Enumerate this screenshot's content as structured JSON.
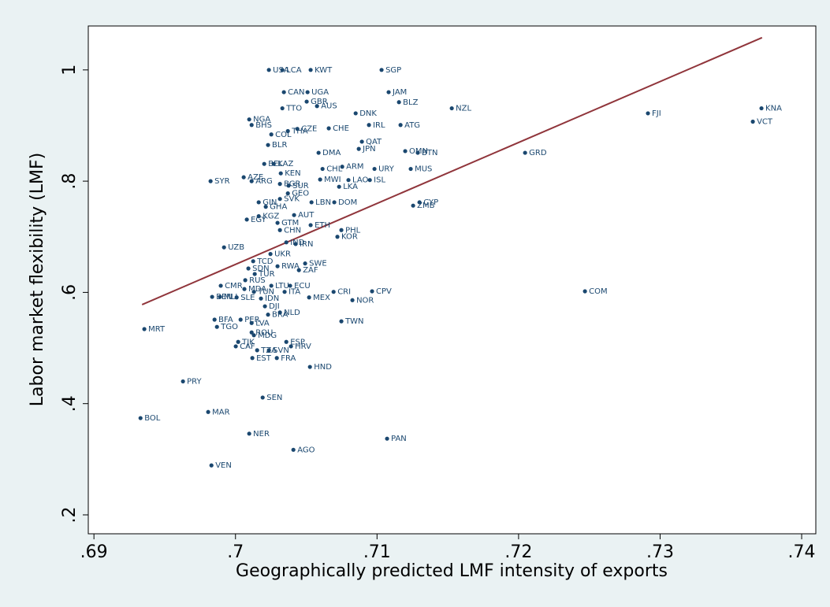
{
  "chart_data": {
    "type": "scatter",
    "xlabel": "Geographically predicted LMF intensity of exports",
    "ylabel": "Labor market flexibility (LMF)",
    "xlim": [
      0.6896,
      0.741
    ],
    "ylim": [
      0.166,
      1.079
    ],
    "xticks": [
      {
        "value": 0.69,
        "label": ".69"
      },
      {
        "value": 0.7,
        "label": ".7"
      },
      {
        "value": 0.71,
        "label": ".71"
      },
      {
        "value": 0.72,
        "label": ".72"
      },
      {
        "value": 0.73,
        "label": ".73"
      },
      {
        "value": 0.74,
        "label": ".74"
      }
    ],
    "yticks": [
      {
        "value": 0.2,
        "label": ".2"
      },
      {
        "value": 0.4,
        "label": ".4"
      },
      {
        "value": 0.6,
        "label": ".6"
      },
      {
        "value": 0.8,
        "label": ".8"
      },
      1
    ],
    "series": [
      {
        "color": "#1a476f",
        "labels": [
          "USA",
          "LCA",
          "KWT",
          "SGP",
          "CAN",
          "UGA",
          "JAM",
          "GBR",
          "BLZ",
          "AUS",
          "TTO",
          "NZL",
          "DNK",
          "FJI",
          "KNA",
          "NGA",
          "BHS",
          "THA",
          "CZE",
          "CHE",
          "IRL",
          "ATG",
          "VCT",
          "COL",
          "QAT",
          "JPN",
          "BLR",
          "DMA",
          "OMN",
          "BTN",
          "GRD",
          "BEL",
          "KAZ",
          "ARM",
          "CHL",
          "URY",
          "MUS",
          "KEN",
          "MWI",
          "LAO",
          "ISL",
          "AZE",
          "ARG",
          "SYR",
          "BGR",
          "SUR",
          "LKA",
          "GEO",
          "SVK",
          "GIN",
          "LBN",
          "DOM",
          "GHA",
          "CYP",
          "ZMB",
          "AUT",
          "KGZ",
          "EGY",
          "GTM",
          "ETH",
          "CHN",
          "PHL",
          "KOR",
          "IND",
          "IRN",
          "UZB",
          "UKR",
          "TCD",
          "SWE",
          "RWA",
          "ZAF",
          "SDN",
          "TUR",
          "RUS",
          "CMR",
          "LTU",
          "ECU",
          "MDA",
          "TUN",
          "CRI",
          "CPV",
          "COM",
          "ITA",
          "BEN",
          "MLI",
          "SLE",
          "IDN",
          "MEX",
          "NOR",
          "DJI",
          "NLD",
          "BRA",
          "BFA",
          "PER",
          "LVA",
          "TWN",
          "ROU",
          "MDG",
          "ESP",
          "TJK",
          "HRV",
          "CAF",
          "TZA",
          "SVN",
          "EST",
          "FRA",
          "HND",
          "MRT",
          "TGO",
          "PRY",
          "SEN",
          "MAR",
          "BOL",
          "NER",
          "PAN",
          "AGO",
          "VEN"
        ],
        "x": [
          0.70236,
          0.70331,
          0.70531,
          0.71032,
          0.70342,
          0.70509,
          0.71082,
          0.70503,
          0.71155,
          0.70576,
          0.70331,
          0.71528,
          0.70849,
          0.72914,
          0.73716,
          0.70097,
          0.70114,
          0.7037,
          0.70437,
          0.70659,
          0.70943,
          0.71166,
          0.73655,
          0.70253,
          0.70893,
          0.70871,
          0.7023,
          0.70587,
          0.71199,
          0.71288,
          0.72046,
          0.70203,
          0.7027,
          0.70754,
          0.70615,
          0.70982,
          0.71238,
          0.7032,
          0.70598,
          0.70798,
          0.70949,
          0.70058,
          0.70114,
          0.69824,
          0.70314,
          0.70375,
          0.70732,
          0.7037,
          0.70314,
          0.70164,
          0.70537,
          0.70698,
          0.70214,
          0.713,
          0.71255,
          0.70414,
          0.70164,
          0.7008,
          0.70297,
          0.70531,
          0.70314,
          0.70748,
          0.7072,
          0.70359,
          0.70425,
          0.69919,
          0.70247,
          0.70125,
          0.70492,
          0.70297,
          0.70448,
          0.70091,
          0.70136,
          0.70069,
          0.69896,
          0.70253,
          0.70386,
          0.70063,
          0.7013,
          0.70693,
          0.70965,
          0.72469,
          0.70347,
          0.69835,
          0.69891,
          0.70008,
          0.7018,
          0.7052,
          0.70826,
          0.70208,
          0.70314,
          0.7023,
          0.69852,
          0.70036,
          0.70114,
          0.70748,
          0.70114,
          0.7013,
          0.70359,
          0.70019,
          0.70392,
          0.70002,
          0.70153,
          0.70236,
          0.70119,
          0.70292,
          0.70526,
          0.69356,
          0.69869,
          0.69629,
          0.70192,
          0.69807,
          0.69329,
          0.70097,
          0.71071,
          0.70409,
          0.6983
        ],
        "values": [
          1,
          1,
          1,
          1,
          0.96,
          0.96,
          0.96,
          0.943,
          0.942,
          0.935,
          0.931,
          0.931,
          0.922,
          0.922,
          0.931,
          0.911,
          0.901,
          0.89,
          0.894,
          0.895,
          0.901,
          0.901,
          0.907,
          0.884,
          0.871,
          0.858,
          0.865,
          0.851,
          0.854,
          0.851,
          0.851,
          0.831,
          0.831,
          0.826,
          0.822,
          0.822,
          0.822,
          0.814,
          0.803,
          0.802,
          0.802,
          0.807,
          0.8,
          0.8,
          0.795,
          0.792,
          0.79,
          0.778,
          0.768,
          0.762,
          0.762,
          0.762,
          0.754,
          0.762,
          0.756,
          0.739,
          0.737,
          0.731,
          0.725,
          0.721,
          0.712,
          0.712,
          0.7,
          0.69,
          0.687,
          0.681,
          0.669,
          0.656,
          0.652,
          0.647,
          0.64,
          0.643,
          0.633,
          0.622,
          0.612,
          0.612,
          0.612,
          0.606,
          0.601,
          0.601,
          0.602,
          0.602,
          0.601,
          0.592,
          0.592,
          0.591,
          0.589,
          0.591,
          0.586,
          0.575,
          0.564,
          0.56,
          0.551,
          0.551,
          0.545,
          0.548,
          0.528,
          0.523,
          0.511,
          0.511,
          0.503,
          0.503,
          0.496,
          0.496,
          0.482,
          0.482,
          0.466,
          0.534,
          0.538,
          0.44,
          0.411,
          0.385,
          0.374,
          0.346,
          0.337,
          0.317,
          0.289
        ]
      }
    ],
    "fit_line": {
      "color": "#90353b",
      "x": [
        0.6934,
        0.7372
      ],
      "values": [
        0.578,
        1.058
      ]
    }
  }
}
